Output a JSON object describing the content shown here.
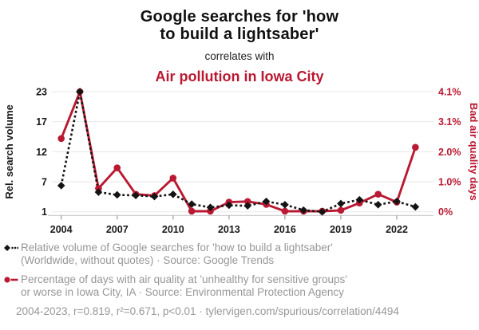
{
  "header": {
    "title_line1": "Google searches for 'how",
    "title_line2": "to build a lightsaber'",
    "connector": "correlates with",
    "subtitle": "Air pollution in Iowa City"
  },
  "colors": {
    "accent_red": "#b91932",
    "series_black": "#141414",
    "text_gray": "#979797",
    "grid": "#e7e7e7",
    "axis_line": "#c8c8c8",
    "tick_mark": "#9a9a9a"
  },
  "chart_data": {
    "type": "line",
    "title": "Google searches for 'how to build a lightsaber' correlates with Air pollution in Iowa City",
    "x": [
      2004,
      2005,
      2006,
      2007,
      2008,
      2009,
      2010,
      2011,
      2012,
      2013,
      2014,
      2015,
      2016,
      2017,
      2018,
      2019,
      2020,
      2021,
      2022,
      2023
    ],
    "series": [
      {
        "name": "lightsaber-searches",
        "label": "Relative volume of Google searches for 'how to build a lightsaber'",
        "axis": "left",
        "style": "dotted-diamond",
        "color": "#141414",
        "values": [
          5.8,
          23,
          4.6,
          4.1,
          4.0,
          3.8,
          4.2,
          2.4,
          1.8,
          2.2,
          2.1,
          2.9,
          2.3,
          1.3,
          1.0,
          2.5,
          3.2,
          2.3,
          2.9,
          1.9
        ]
      },
      {
        "name": "bad-air-quality-days",
        "label": "Percentage of days with air quality at 'unhealthy for sensitive groups' or worse in Iowa City, IA",
        "axis": "right",
        "style": "solid-circle",
        "color": "#b91932",
        "values": [
          2.5,
          4.1,
          0.8,
          1.5,
          0.6,
          0.55,
          1.15,
          0.02,
          0.02,
          0.33,
          0.35,
          0.25,
          0.02,
          0.02,
          0.02,
          0.05,
          0.3,
          0.6,
          0.33,
          2.2
        ]
      }
    ],
    "left_axis": {
      "label": "Rel. search volume",
      "ticks": [
        1,
        7,
        12,
        17,
        23
      ],
      "range": [
        1,
        23
      ]
    },
    "right_axis": {
      "label": "Bad air quality days",
      "ticks": [
        "0%",
        "1.0%",
        "2.0%",
        "3.1%",
        "4.1%"
      ],
      "tick_values": [
        0,
        1.0,
        2.0,
        3.1,
        4.1
      ],
      "range": [
        0,
        4.1
      ],
      "unit": "%"
    },
    "x_axis": {
      "ticks": [
        2004,
        2007,
        2010,
        2013,
        2016,
        2019,
        2022
      ]
    },
    "grid": true,
    "legend_position": "bottom"
  },
  "legend": {
    "series1_line1": "Relative volume of Google searches for 'how to build a lightsaber'",
    "series1_line2": "(Worldwide, without quotes) · Source: Google Trends",
    "series2_line1": "Percentage of days with air quality at 'unhealthy for sensitive groups'",
    "series2_line2": "or worse in Iowa City, IA · Source: Environmental Protection Agency"
  },
  "footer": {
    "stats": "2004-2023, r=0.819, r²=0.671, p<0.01 · tylervigen.com/spurious/correlation/4494"
  }
}
